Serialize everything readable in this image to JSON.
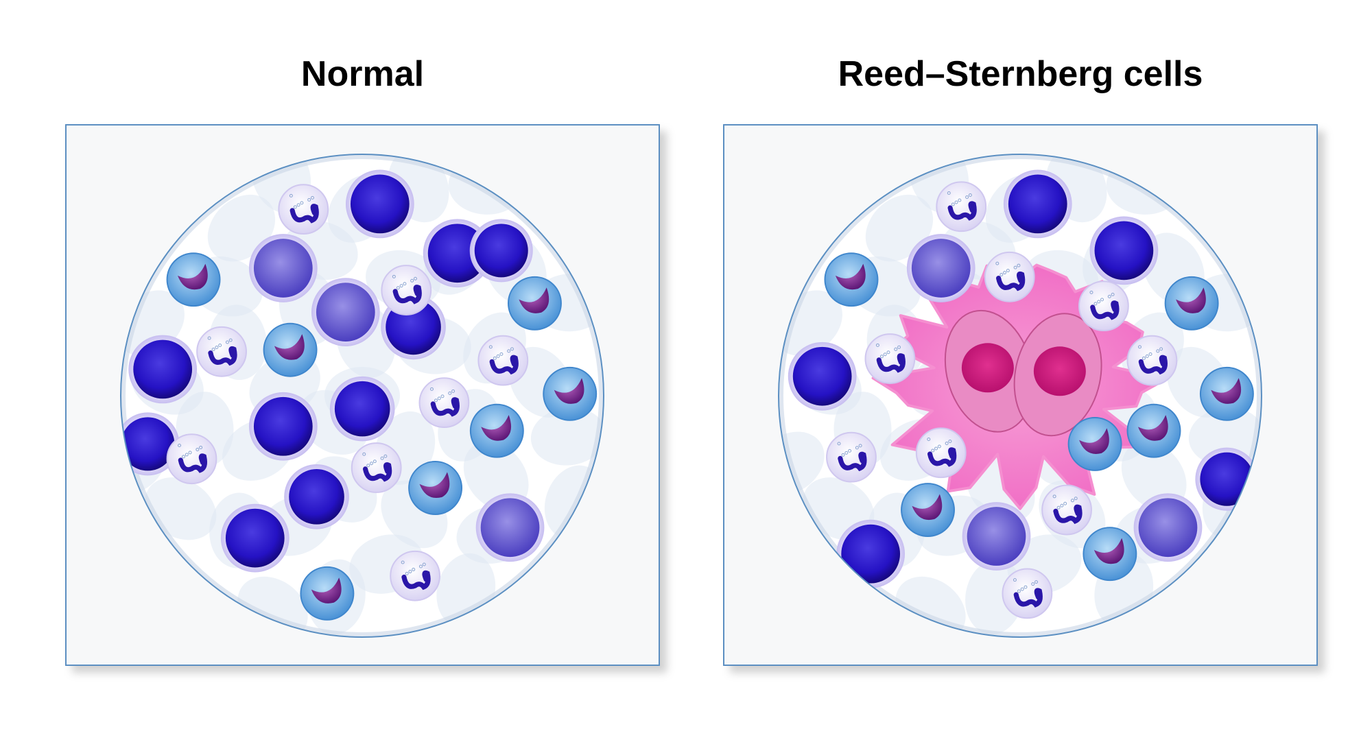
{
  "panels": [
    {
      "title": "Normal"
    },
    {
      "title": "Reed–Sternberg cells"
    }
  ],
  "colors": {
    "panel_border": "#5b8fc2",
    "panel_fill": "#f7f8f9",
    "lymphocyte": "#2a17c8",
    "monocyte": "#7a72d8",
    "eosinophil_cytoplasm": "#7fb6e6",
    "eosinophil_nucleus": "#7a2a8c",
    "reed_sternberg": "#f28ccf"
  }
}
